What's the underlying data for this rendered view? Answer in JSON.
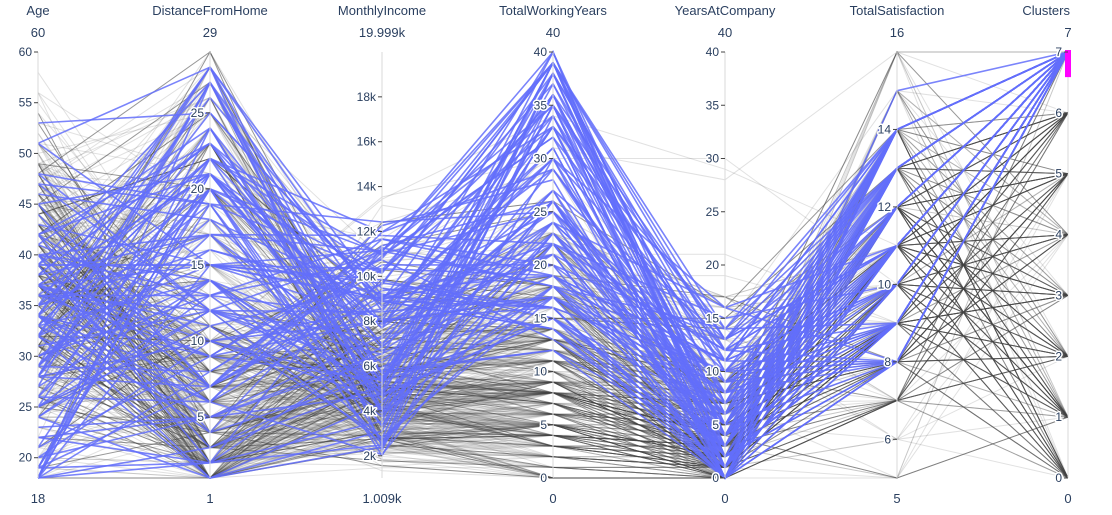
{
  "chart_data": {
    "type": "parallel_coordinates",
    "colors": {
      "highlight": "#636efa",
      "context": "#444444",
      "constraint": "#ff00ff",
      "axis_text": "#2a3f5f"
    },
    "axes": [
      {
        "label": "Age",
        "range": [
          18,
          60
        ],
        "range_labels": [
          "18",
          "60"
        ],
        "ticks": [
          20,
          25,
          30,
          35,
          40,
          45,
          50,
          55,
          60
        ],
        "tick_labels": [
          "20",
          "25",
          "30",
          "35",
          "40",
          "45",
          "50",
          "55",
          "60"
        ],
        "tick_side": "left",
        "integer": true
      },
      {
        "label": "DistanceFromHome",
        "range": [
          1,
          29
        ],
        "range_labels": [
          "1",
          "29"
        ],
        "ticks": [
          5,
          10,
          15,
          20,
          25
        ],
        "tick_labels": [
          "5",
          "10",
          "15",
          "20",
          "25"
        ],
        "tick_side": "left",
        "integer": true
      },
      {
        "label": "MonthlyIncome",
        "range": [
          1009,
          19999
        ],
        "range_labels": [
          "1.009k",
          "19.999k"
        ],
        "ticks": [
          2000,
          4000,
          6000,
          8000,
          10000,
          12000,
          14000,
          16000,
          18000
        ],
        "tick_labels": [
          "2k",
          "4k",
          "6k",
          "8k",
          "10k",
          "12k",
          "14k",
          "16k",
          "18k"
        ],
        "tick_side": "left",
        "integer": false
      },
      {
        "label": "TotalWorkingYears",
        "range": [
          0,
          40
        ],
        "range_labels": [
          "0",
          "40"
        ],
        "ticks": [
          0,
          5,
          10,
          15,
          20,
          25,
          30,
          35,
          40
        ],
        "tick_labels": [
          "0",
          "5",
          "10",
          "15",
          "20",
          "25",
          "30",
          "35",
          "40"
        ],
        "tick_side": "left",
        "integer": true
      },
      {
        "label": "YearsAtCompany",
        "range": [
          0,
          40
        ],
        "range_labels": [
          "0",
          "40"
        ],
        "ticks": [
          0,
          5,
          10,
          15,
          20,
          25,
          30,
          35,
          40
        ],
        "tick_labels": [
          "0",
          "5",
          "10",
          "15",
          "20",
          "25",
          "30",
          "35",
          "40"
        ],
        "tick_side": "left",
        "integer": true
      },
      {
        "label": "TotalSatisfaction",
        "range": [
          5,
          16
        ],
        "range_labels": [
          "5",
          "16"
        ],
        "ticks": [
          6,
          8,
          10,
          12,
          14
        ],
        "tick_labels": [
          "6",
          "8",
          "10",
          "12",
          "14"
        ],
        "tick_side": "left",
        "integer": true
      },
      {
        "label": "Clusters",
        "range": [
          0,
          7
        ],
        "range_labels": [
          "0",
          "7"
        ],
        "ticks": [
          0,
          1,
          2,
          3,
          4,
          5,
          6,
          7
        ],
        "tick_labels": [
          "0",
          "1",
          "2",
          "3",
          "4",
          "5",
          "6",
          "7"
        ],
        "tick_side": "left",
        "integer": true,
        "constraint_range": [
          6.85,
          7
        ]
      }
    ],
    "highlighted_cluster": 7
  }
}
